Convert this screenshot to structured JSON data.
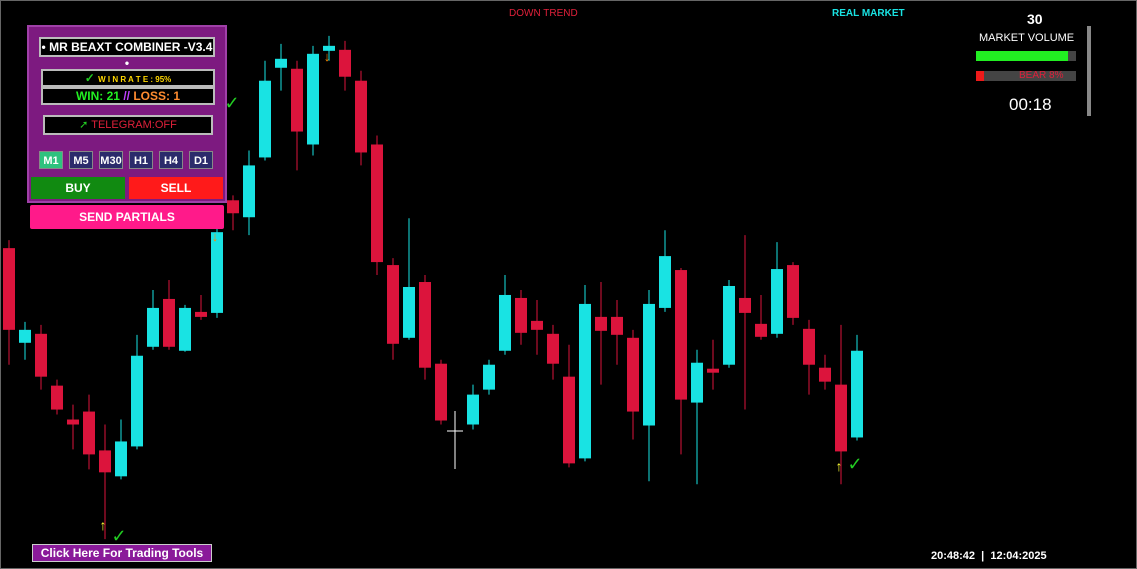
{
  "header": {
    "trend": "DOWN TREND",
    "market": "REAL MARKET"
  },
  "panel": {
    "title": "• MR BEAXT COMBINER -V3.4 •",
    "winrate": "W I N R A T E : 95%",
    "win": "WIN: 21",
    "loss": "LOSS: 1",
    "telegram": "TELEGRAM:OFF",
    "timeframes": [
      "M1",
      "M5",
      "M30",
      "H1",
      "H4",
      "D1"
    ],
    "buy": "BUY",
    "sell": "SELL",
    "partials": "SEND PARTIALS"
  },
  "volume": {
    "count": "30",
    "label": "MARKET VOLUME",
    "bear": "BEAR 8%",
    "timer": "00:18"
  },
  "footer": {
    "tools": "Click Here For Trading Tools",
    "clock": "20:48:42  |  12:04:2025"
  },
  "chart_data": {
    "type": "candlestick",
    "bull_color": "#19e3e3",
    "bear_color": "#dc143c",
    "ylim": [
      0,
      569
    ],
    "candles": [
      {
        "open": 321,
        "high": 329,
        "low": 204,
        "close": 239
      },
      {
        "open": 226,
        "high": 247,
        "low": 209,
        "close": 239
      },
      {
        "open": 235,
        "high": 244,
        "low": 179,
        "close": 192
      },
      {
        "open": 183,
        "high": 189,
        "low": 154,
        "close": 159
      },
      {
        "open": 149,
        "high": 164,
        "low": 119,
        "close": 144
      },
      {
        "open": 157,
        "high": 174,
        "low": 99,
        "close": 114
      },
      {
        "open": 118,
        "high": 144,
        "low": 29,
        "close": 96
      },
      {
        "open": 92,
        "high": 149,
        "low": 89,
        "close": 127
      },
      {
        "open": 122,
        "high": 234,
        "low": 119,
        "close": 213
      },
      {
        "open": 222,
        "high": 279,
        "low": 219,
        "close": 261
      },
      {
        "open": 270,
        "high": 289,
        "low": 219,
        "close": 222
      },
      {
        "open": 218,
        "high": 264,
        "low": 217,
        "close": 261
      },
      {
        "open": 257,
        "high": 274,
        "low": 249,
        "close": 252
      },
      {
        "open": 256,
        "high": 344,
        "low": 251,
        "close": 337
      },
      {
        "open": 369,
        "high": 374,
        "low": 339,
        "close": 356
      },
      {
        "open": 352,
        "high": 419,
        "low": 334,
        "close": 404
      },
      {
        "open": 412,
        "high": 509,
        "low": 409,
        "close": 489
      },
      {
        "open": 502,
        "high": 526,
        "low": 479,
        "close": 511
      },
      {
        "open": 501,
        "high": 509,
        "low": 399,
        "close": 438
      },
      {
        "open": 425,
        "high": 524,
        "low": 414,
        "close": 516
      },
      {
        "open": 519,
        "high": 534,
        "low": 509,
        "close": 524
      },
      {
        "open": 520,
        "high": 529,
        "low": 479,
        "close": 493
      },
      {
        "open": 489,
        "high": 499,
        "low": 404,
        "close": 417
      },
      {
        "open": 425,
        "high": 434,
        "low": 294,
        "close": 307
      },
      {
        "open": 304,
        "high": 311,
        "low": 209,
        "close": 225
      },
      {
        "open": 231,
        "high": 351,
        "low": 229,
        "close": 282
      },
      {
        "open": 287,
        "high": 294,
        "low": 189,
        "close": 201
      },
      {
        "open": 205,
        "high": 209,
        "low": 144,
        "close": 148
      },
      null,
      {
        "open": 144,
        "high": 184,
        "low": 139,
        "close": 174
      },
      {
        "open": 179,
        "high": 209,
        "low": 174,
        "close": 204
      },
      {
        "open": 218,
        "high": 294,
        "low": 214,
        "close": 274
      },
      {
        "open": 271,
        "high": 279,
        "low": 224,
        "close": 236
      },
      {
        "open": 248,
        "high": 269,
        "low": 214,
        "close": 239
      },
      {
        "open": 235,
        "high": 244,
        "low": 189,
        "close": 205
      },
      {
        "open": 192,
        "high": 224,
        "low": 101,
        "close": 105
      },
      {
        "open": 110,
        "high": 284,
        "low": 107,
        "close": 265
      },
      {
        "open": 252,
        "high": 287,
        "low": 184,
        "close": 238
      },
      {
        "open": 252,
        "high": 269,
        "low": 204,
        "close": 234
      },
      {
        "open": 231,
        "high": 239,
        "low": 129,
        "close": 157
      },
      {
        "open": 143,
        "high": 279,
        "low": 87,
        "close": 265
      },
      {
        "open": 261,
        "high": 339,
        "low": 257,
        "close": 313
      },
      {
        "open": 299,
        "high": 301,
        "low": 114,
        "close": 169
      },
      {
        "open": 166,
        "high": 219,
        "low": 84,
        "close": 206
      },
      {
        "open": 200,
        "high": 229,
        "low": 179,
        "close": 196
      },
      {
        "open": 204,
        "high": 289,
        "low": 201,
        "close": 283
      },
      {
        "open": 271,
        "high": 334,
        "low": 159,
        "close": 256
      },
      {
        "open": 245,
        "high": 274,
        "low": 229,
        "close": 232
      },
      {
        "open": 235,
        "high": 327,
        "low": 231,
        "close": 300
      },
      {
        "open": 304,
        "high": 307,
        "low": 244,
        "close": 251
      },
      {
        "open": 240,
        "high": 249,
        "low": 174,
        "close": 204
      },
      {
        "open": 201,
        "high": 214,
        "low": 179,
        "close": 187
      },
      {
        "open": 184,
        "high": 244,
        "low": 84,
        "close": 117
      },
      {
        "open": 131,
        "high": 234,
        "low": 128,
        "close": 218
      }
    ]
  }
}
